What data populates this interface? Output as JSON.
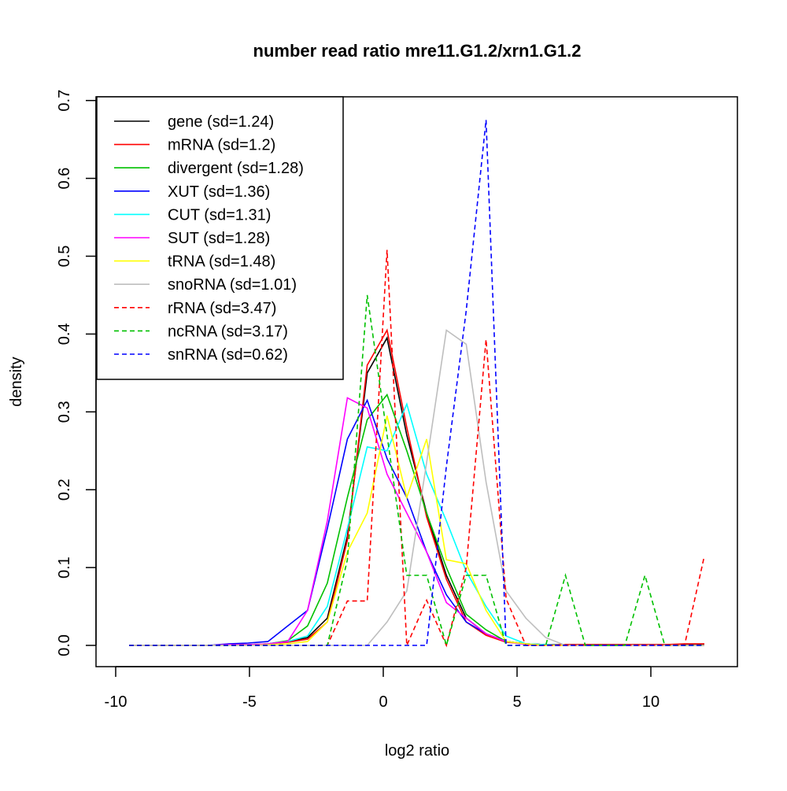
{
  "chart_data": {
    "type": "line",
    "title": "number read ratio mre11.G1.2/xrn1.G1.2",
    "xlabel": "log2 ratio",
    "ylabel": "density",
    "xlim": [
      -10.2,
      13.3
    ],
    "ylim": [
      -0.028,
      0.703
    ],
    "xticks": [
      -10,
      -5,
      0,
      5,
      10
    ],
    "xtick_labels": [
      "-10",
      "-5",
      "0",
      "5",
      "10"
    ],
    "yticks": [
      0,
      0.1,
      0.2,
      0.3,
      0.4,
      0.5,
      0.6,
      0.7
    ],
    "ytick_labels": [
      "0.0",
      "0.1",
      "0.2",
      "0.3",
      "0.4",
      "0.5",
      "0.6",
      "0.7"
    ],
    "legend_position": "top-left",
    "x": [
      -9.5,
      -8.76,
      -8.02,
      -7.28,
      -6.53,
      -5.79,
      -5.05,
      -4.31,
      -3.57,
      -2.83,
      -2.09,
      -1.34,
      -0.6,
      0.14,
      0.88,
      1.62,
      2.36,
      3.1,
      3.84,
      4.59,
      5.33,
      6.07,
      6.81,
      7.55,
      8.29,
      9.03,
      9.78,
      10.52,
      11.26,
      12.0
    ],
    "series": [
      {
        "name": "gene (sd=1.24)",
        "color": "#000000",
        "dashed": false,
        "values": [
          0,
          0,
          0,
          0,
          0,
          0.001,
          0.001,
          0.002,
          0.005,
          0.01,
          0.035,
          0.14,
          0.35,
          0.395,
          0.27,
          0.17,
          0.09,
          0.035,
          0.015,
          0.005,
          0.002,
          0.001,
          0.001,
          0.001,
          0.001,
          0.001,
          0.001,
          0.001,
          0.001,
          0.001
        ]
      },
      {
        "name": "mRNA (sd=1.2)",
        "color": "#ff0000",
        "dashed": false,
        "values": [
          0,
          0,
          0,
          0,
          0,
          0.001,
          0.001,
          0.002,
          0.004,
          0.008,
          0.03,
          0.135,
          0.36,
          0.405,
          0.28,
          0.165,
          0.085,
          0.03,
          0.013,
          0.004,
          0.002,
          0.001,
          0.001,
          0.001,
          0.001,
          0.001,
          0.001,
          0.001,
          0.002,
          0.002
        ]
      },
      {
        "name": "divergent (sd=1.28)",
        "color": "#00c000",
        "dashed": false,
        "values": [
          0,
          0,
          0,
          0,
          0,
          0.001,
          0.001,
          0.002,
          0.006,
          0.025,
          0.08,
          0.19,
          0.29,
          0.322,
          0.25,
          0.17,
          0.1,
          0.04,
          0.02,
          0.005,
          0.002,
          0.001,
          0,
          0,
          0,
          0,
          0,
          0,
          0,
          0
        ]
      },
      {
        "name": "XUT (sd=1.36)",
        "color": "#0000ff",
        "dashed": false,
        "values": [
          0,
          0,
          0,
          0,
          0,
          0.002,
          0.003,
          0.005,
          0.025,
          0.045,
          0.15,
          0.265,
          0.315,
          0.24,
          0.19,
          0.12,
          0.065,
          0.03,
          0.015,
          0.005,
          0.002,
          0.001,
          0,
          0,
          0,
          0,
          0,
          0,
          0,
          0
        ]
      },
      {
        "name": "CUT (sd=1.31)",
        "color": "#00ffff",
        "dashed": false,
        "values": [
          0,
          0,
          0,
          0,
          0,
          0,
          0.001,
          0.002,
          0.005,
          0.012,
          0.05,
          0.15,
          0.255,
          0.25,
          0.31,
          0.22,
          0.16,
          0.095,
          0.05,
          0.012,
          0.002,
          0.001,
          0,
          0,
          0,
          0,
          0,
          0,
          0,
          0
        ]
      },
      {
        "name": "SUT (sd=1.28)",
        "color": "#ff00ff",
        "dashed": false,
        "values": [
          0,
          0,
          0,
          0,
          0,
          0.001,
          0.001,
          0.002,
          0.005,
          0.045,
          0.16,
          0.318,
          0.305,
          0.22,
          0.17,
          0.12,
          0.055,
          0.035,
          0.015,
          0.005,
          0.001,
          0,
          0,
          0,
          0,
          0,
          0,
          0,
          0,
          0
        ]
      },
      {
        "name": "tRNA (sd=1.48)",
        "color": "#ffff00",
        "dashed": false,
        "values": [
          0,
          0,
          0,
          0,
          0,
          0,
          0,
          0.001,
          0.002,
          0.005,
          0.03,
          0.12,
          0.17,
          0.295,
          0.19,
          0.265,
          0.11,
          0.105,
          0.045,
          0.005,
          0.002,
          0,
          0,
          0,
          0,
          0,
          0,
          0,
          0,
          0
        ]
      },
      {
        "name": "snoRNA (sd=1.01)",
        "color": "#bebebe",
        "dashed": false,
        "values": [
          0,
          0,
          0,
          0,
          0,
          0,
          0,
          0,
          0,
          0,
          0,
          0,
          0,
          0.03,
          0.07,
          0.235,
          0.405,
          0.387,
          0.21,
          0.07,
          0.035,
          0.01,
          0,
          0,
          0,
          0,
          0,
          0,
          0,
          0
        ]
      },
      {
        "name": "rRNA (sd=3.47)",
        "color": "#ff0000",
        "dashed": true,
        "values": [
          0,
          0,
          0,
          0,
          0,
          0,
          0,
          0,
          0,
          0,
          0,
          0.057,
          0.057,
          0.508,
          0,
          0.058,
          0,
          0.1,
          0.393,
          0.06,
          0,
          0,
          0,
          0,
          0,
          0,
          0,
          0,
          0,
          0.115
        ]
      },
      {
        "name": "ncRNA (sd=3.17)",
        "color": "#00c000",
        "dashed": true,
        "values": [
          0,
          0,
          0,
          0,
          0,
          0,
          0,
          0,
          0,
          0,
          0,
          0.11,
          0.45,
          0.27,
          0.09,
          0.09,
          0,
          0.09,
          0.09,
          0,
          0,
          0,
          0.09,
          0,
          0,
          0,
          0.09,
          0,
          0,
          0
        ]
      },
      {
        "name": "snRNA (sd=0.62)",
        "color": "#0000ff",
        "dashed": true,
        "values": [
          0,
          0,
          0,
          0,
          0,
          0,
          0,
          0,
          0,
          0,
          0,
          0,
          0,
          0,
          0,
          0,
          0.23,
          0.43,
          0.675,
          0,
          0,
          0,
          0,
          0,
          0,
          0,
          0,
          0,
          0,
          0
        ]
      }
    ]
  }
}
